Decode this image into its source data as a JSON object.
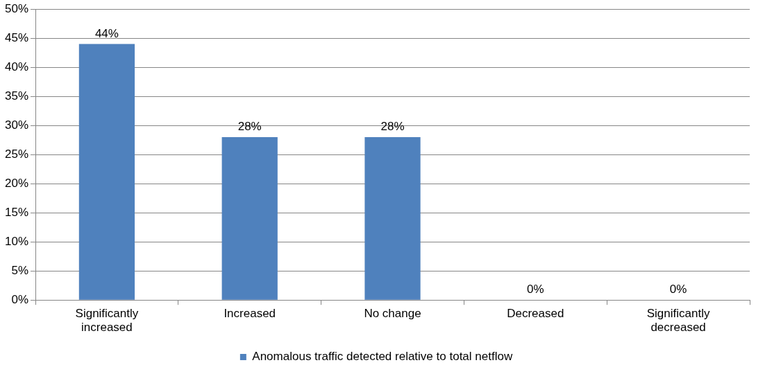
{
  "chart_data": {
    "type": "bar",
    "categories": [
      "Significantly increased",
      "Increased",
      "No change",
      "Decreased",
      "Significantly decreased"
    ],
    "series": [
      {
        "name": "Anomalous traffic detected relative to total netflow",
        "color": "#4f81bd",
        "values": [
          44,
          28,
          28,
          0,
          0
        ],
        "value_labels": [
          "44%",
          "28%",
          "28%",
          "0%",
          "0%"
        ]
      }
    ],
    "ylim": [
      0,
      50
    ],
    "yticks": [
      {
        "value": 0,
        "label": "0%"
      },
      {
        "value": 5,
        "label": "5%"
      },
      {
        "value": 10,
        "label": "10%"
      },
      {
        "value": 15,
        "label": "15%"
      },
      {
        "value": 20,
        "label": "20%"
      },
      {
        "value": 25,
        "label": "25%"
      },
      {
        "value": 30,
        "label": "30%"
      },
      {
        "value": 35,
        "label": "35%"
      },
      {
        "value": 40,
        "label": "40%"
      },
      {
        "value": 45,
        "label": "45%"
      },
      {
        "value": 50,
        "label": "50%"
      }
    ],
    "grid": "y",
    "legend": "bottom"
  }
}
